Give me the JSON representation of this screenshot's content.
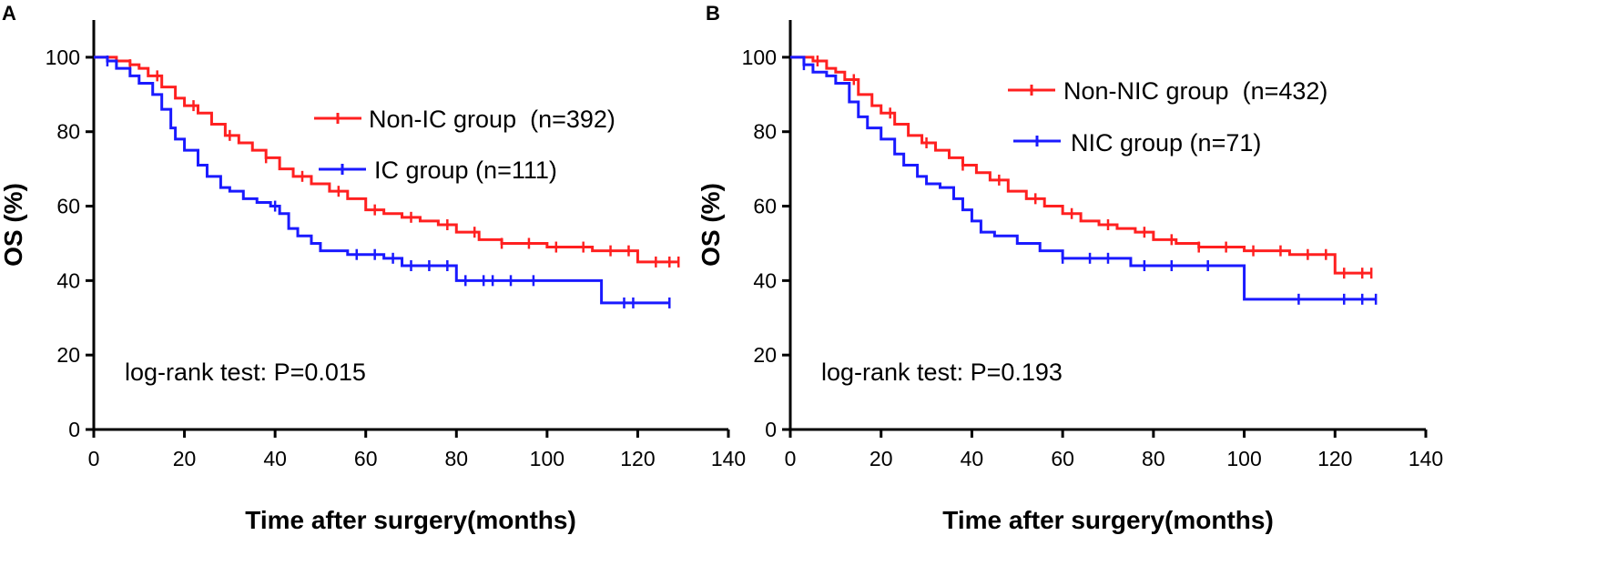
{
  "chart_data": [
    {
      "type": "line",
      "subtype": "kaplan-meier",
      "panel_label": "A",
      "xlabel": "Time after surgery(months)",
      "ylabel": "OS (%)",
      "xlim": [
        0,
        140
      ],
      "ylim": [
        0,
        110
      ],
      "xticks": [
        0,
        20,
        40,
        60,
        80,
        100,
        120,
        140
      ],
      "yticks": [
        0,
        20,
        40,
        60,
        80,
        100
      ],
      "legend_position": "upper-right",
      "annotation": "log-rank test: P=0.015",
      "series": [
        {
          "name": "Non-IC group  (n=392)",
          "color": "#ff2020",
          "x": [
            0,
            3,
            5,
            8,
            10,
            12,
            15,
            18,
            20,
            23,
            26,
            29,
            32,
            35,
            38,
            41,
            44,
            48,
            52,
            56,
            60,
            64,
            68,
            72,
            76,
            80,
            85,
            90,
            95,
            100,
            105,
            110,
            115,
            120,
            125,
            129
          ],
          "y": [
            100,
            100,
            99,
            98,
            97,
            95,
            92,
            89,
            87,
            85,
            82,
            79,
            77,
            75,
            73,
            70,
            68,
            66,
            64,
            62,
            59,
            58,
            57,
            56,
            55,
            53,
            51,
            50,
            50,
            49,
            49,
            48,
            48,
            45,
            45,
            45
          ],
          "censor_x": [
            8,
            14,
            22,
            30,
            38,
            46,
            54,
            62,
            70,
            78,
            84,
            90,
            96,
            102,
            108,
            114,
            118,
            124,
            127,
            129
          ]
        },
        {
          "name": "IC group (n=111)",
          "color": "#1a1aff",
          "x": [
            0,
            3,
            5,
            8,
            10,
            13,
            15,
            17,
            18,
            20,
            23,
            25,
            28,
            30,
            33,
            36,
            39,
            41,
            43,
            45,
            48,
            50,
            53,
            56,
            60,
            64,
            68,
            72,
            76,
            80,
            85,
            90,
            95,
            100,
            105,
            110,
            112,
            115,
            120,
            127
          ],
          "y": [
            100,
            99,
            97,
            95,
            93,
            90,
            86,
            81,
            78,
            75,
            71,
            68,
            65,
            64,
            62,
            61,
            60,
            58,
            54,
            52,
            50,
            48,
            48,
            47,
            47,
            46,
            44,
            44,
            44,
            40,
            40,
            40,
            40,
            40,
            40,
            40,
            34,
            34,
            34,
            34
          ],
          "censor_x": [
            3,
            40,
            58,
            62,
            66,
            70,
            74,
            78,
            82,
            86,
            88,
            92,
            97,
            117,
            119,
            127
          ]
        }
      ]
    },
    {
      "type": "line",
      "subtype": "kaplan-meier",
      "panel_label": "B",
      "xlabel": "Time after surgery(months)",
      "ylabel": "OS (%)",
      "xlim": [
        0,
        140
      ],
      "ylim": [
        0,
        110
      ],
      "xticks": [
        0,
        20,
        40,
        60,
        80,
        100,
        120,
        140
      ],
      "yticks": [
        0,
        20,
        40,
        60,
        80,
        100
      ],
      "legend_position": "upper-right",
      "annotation": "log-rank test: P=0.193",
      "series": [
        {
          "name": "Non-NIC group  (n=432)",
          "color": "#ff2020",
          "x": [
            0,
            3,
            5,
            8,
            10,
            12,
            15,
            18,
            20,
            23,
            26,
            29,
            32,
            35,
            38,
            41,
            44,
            48,
            52,
            56,
            60,
            64,
            68,
            72,
            76,
            80,
            85,
            90,
            95,
            100,
            105,
            110,
            115,
            120,
            125,
            128
          ],
          "y": [
            100,
            100,
            99,
            97,
            96,
            94,
            90,
            87,
            85,
            82,
            79,
            77,
            75,
            73,
            71,
            69,
            67,
            64,
            62,
            60,
            58,
            56,
            55,
            54,
            53,
            51,
            50,
            49,
            49,
            48,
            48,
            47,
            47,
            42,
            42,
            42
          ],
          "censor_x": [
            6,
            14,
            22,
            30,
            38,
            46,
            54,
            62,
            70,
            78,
            84,
            90,
            96,
            102,
            108,
            114,
            118,
            122,
            126,
            128
          ]
        },
        {
          "name": "NIC group (n=71)",
          "color": "#1a1aff",
          "x": [
            0,
            3,
            5,
            8,
            10,
            13,
            15,
            17,
            20,
            23,
            25,
            28,
            30,
            33,
            36,
            38,
            40,
            42,
            45,
            50,
            55,
            60,
            65,
            70,
            75,
            80,
            85,
            90,
            95,
            100,
            110,
            120,
            129
          ],
          "y": [
            100,
            98,
            96,
            95,
            93,
            88,
            84,
            81,
            78,
            74,
            71,
            68,
            66,
            65,
            62,
            59,
            56,
            53,
            52,
            50,
            48,
            46,
            46,
            46,
            44,
            44,
            44,
            44,
            44,
            35,
            35,
            35,
            35
          ],
          "censor_x": [
            3,
            60,
            66,
            70,
            78,
            84,
            92,
            112,
            122,
            126,
            129
          ]
        }
      ]
    }
  ]
}
